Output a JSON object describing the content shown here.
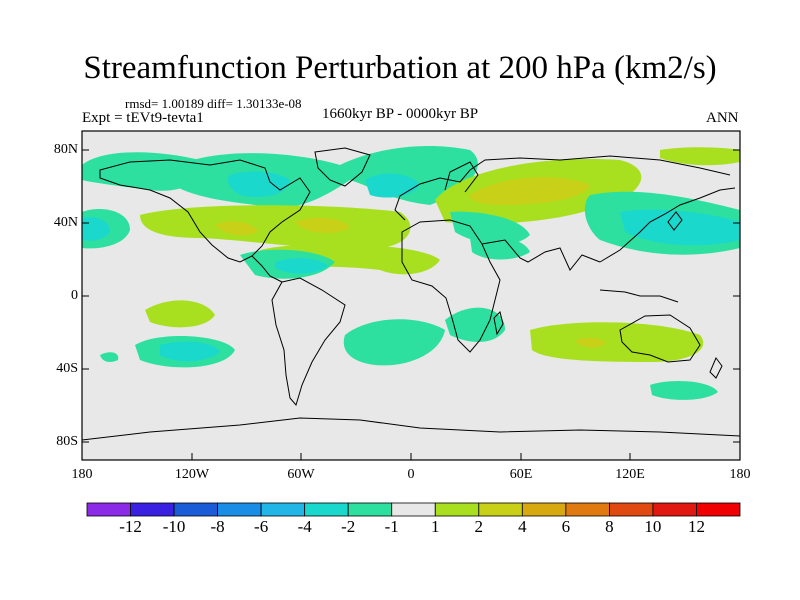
{
  "figure": {
    "title": "Streamfunction Perturbation at 200 hPa (km2/s)",
    "stats": "rmsd= 1.00189 diff= 1.30133e-08",
    "period": "1660kyr BP - 0000kyr BP",
    "experiment": "Expt = tEVt9-tevta1",
    "season": "ANN"
  },
  "axes": {
    "lat_ticks": [
      "80N",
      "40N",
      "0",
      "40S",
      "80S"
    ],
    "lon_ticks": [
      "180",
      "120W",
      "60W",
      "0",
      "60E",
      "120E",
      "180"
    ]
  },
  "colorbar": {
    "labels": [
      "-12",
      "-10",
      "-8",
      "-6",
      "-4",
      "-2",
      "-1",
      "1",
      "2",
      "4",
      "6",
      "8",
      "10",
      "12"
    ],
    "colors": [
      "#8b2be8",
      "#3a20e0",
      "#1a5cd8",
      "#1a8ee6",
      "#22b6e6",
      "#1bd8cc",
      "#2ee0a0",
      "#e8e8e8",
      "#a8e020",
      "#c8d018",
      "#d8a810",
      "#e07a10",
      "#e04a10",
      "#e01810",
      "#f00000"
    ]
  }
}
